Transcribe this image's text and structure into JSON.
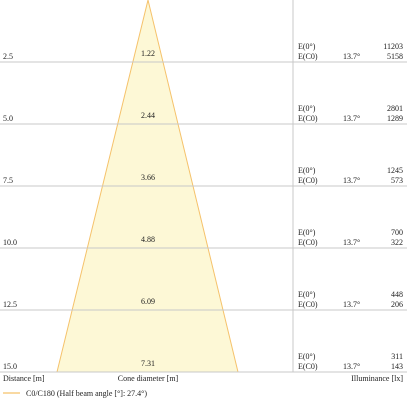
{
  "labels": {
    "distance": "Distance [m]",
    "cone_diameter": "Cone diameter [m]",
    "illuminance": "Illuminance [lx]",
    "legend": "C0/C180 (Half beam angle [°]: 27.4°)"
  },
  "rows": [
    {
      "distance": "2.5",
      "diameter": "1.22",
      "e0_label": "E(0°)",
      "ec0_label": "E(C0)",
      "angle": "13.7°",
      "e0": "11203",
      "ec0": "5158"
    },
    {
      "distance": "5.0",
      "diameter": "2.44",
      "e0_label": "E(0°)",
      "ec0_label": "E(C0)",
      "angle": "13.7°",
      "e0": "2801",
      "ec0": "1289"
    },
    {
      "distance": "7.5",
      "diameter": "3.66",
      "e0_label": "E(0°)",
      "ec0_label": "E(C0)",
      "angle": "13.7°",
      "e0": "1245",
      "ec0": "573"
    },
    {
      "distance": "10.0",
      "diameter": "4.88",
      "e0_label": "E(0°)",
      "ec0_label": "E(C0)",
      "angle": "13.7°",
      "e0": "700",
      "ec0": "322"
    },
    {
      "distance": "12.5",
      "diameter": "6.09",
      "e0_label": "E(0°)",
      "ec0_label": "E(C0)",
      "angle": "13.7°",
      "e0": "448",
      "ec0": "206"
    },
    {
      "distance": "15.0",
      "diameter": "7.31",
      "e0_label": "E(0°)",
      "ec0_label": "E(C0)",
      "angle": "13.7°",
      "e0": "311",
      "ec0": "143"
    }
  ]
}
